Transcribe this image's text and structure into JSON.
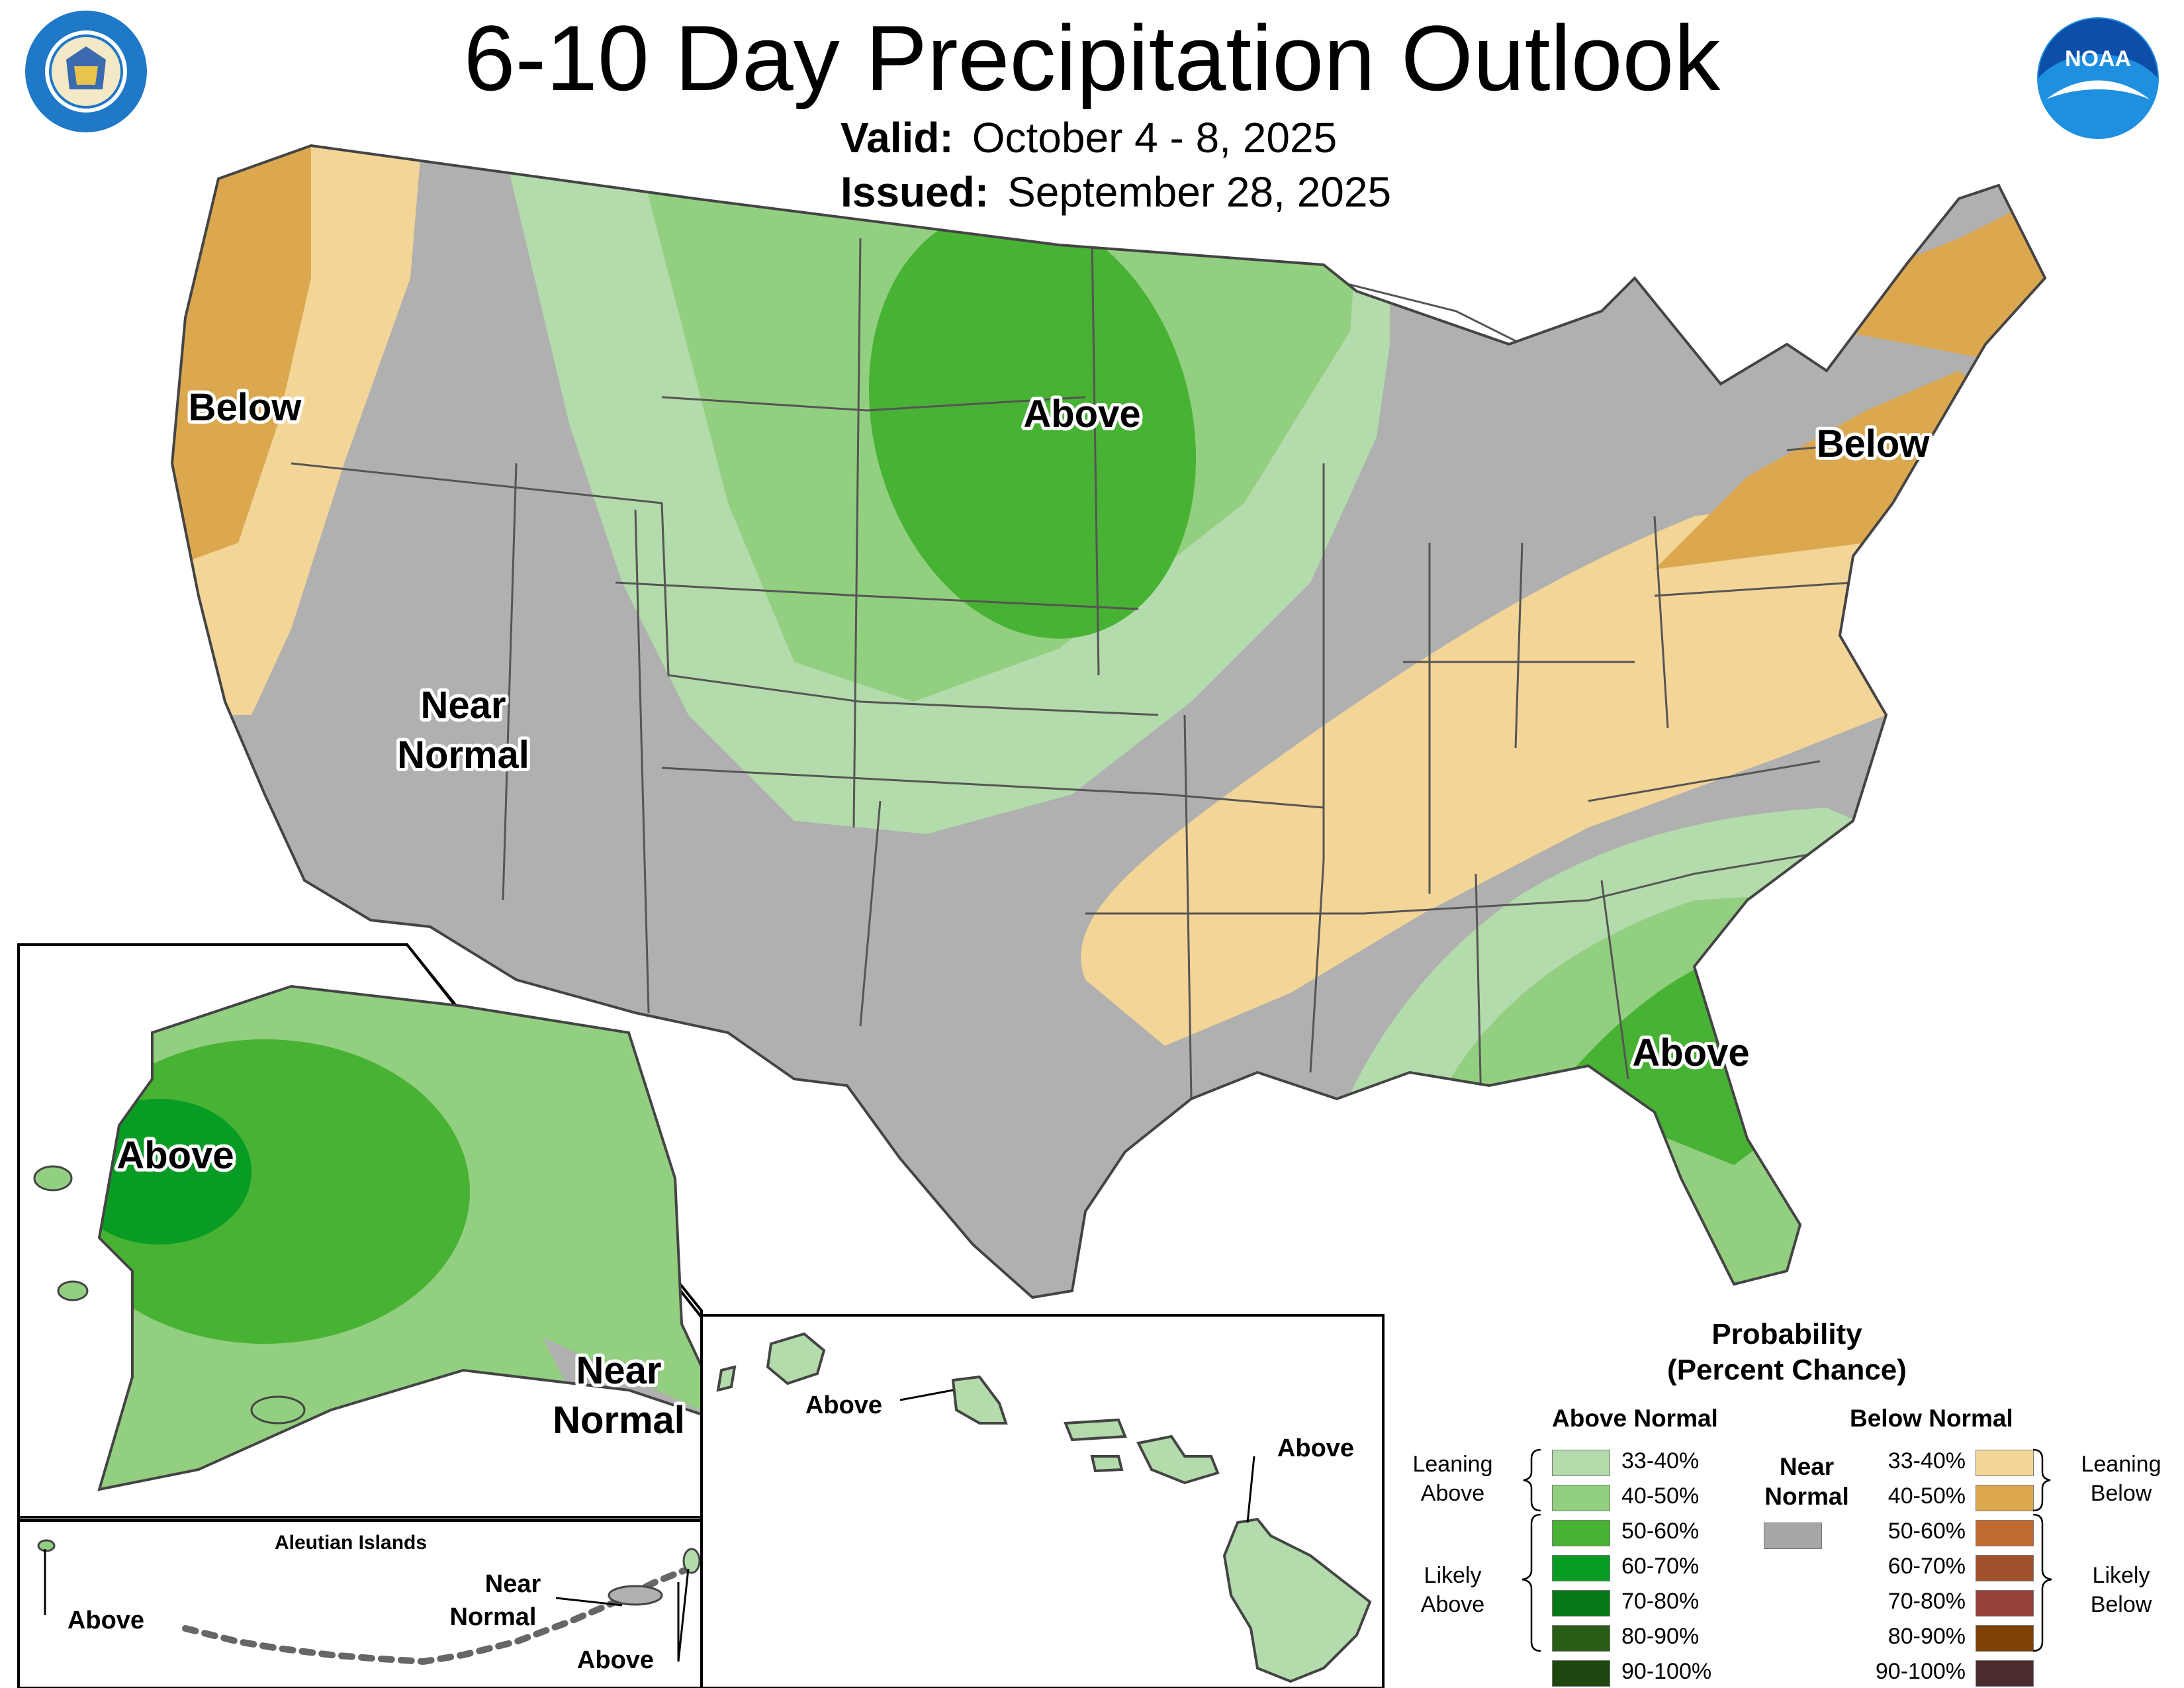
{
  "title": "6-10 Day Precipitation Outlook",
  "valid_label": "Valid:",
  "valid_dates": "October 4 - 8, 2025",
  "issued_label": "Issued:",
  "issued_date": "September 28, 2025",
  "map_labels": {
    "northwest": "Below",
    "plains": "Above",
    "west_line1": "Near",
    "west_line2": "Normal",
    "northeast": "Below",
    "southeast": "Above",
    "alaska_main": "Above",
    "alaska_panhandle_line1": "Near",
    "alaska_panhandle_line2": "Normal",
    "aleutian_title": "Aleutian Islands",
    "aleutian_west": "Above",
    "aleutian_near_line1": "Near",
    "aleutian_near_line2": "Normal",
    "aleutian_east": "Above",
    "hawaii_west": "Above",
    "hawaii_east": "Above"
  },
  "legend": {
    "title_line1": "Probability",
    "title_line2": "(Percent Chance)",
    "above_header": "Above Normal",
    "below_header": "Below Normal",
    "near_line1": "Near",
    "near_line2": "Normal",
    "near_color": "#a6a6a6",
    "leaning_above_1": "Leaning",
    "leaning_above_2": "Above",
    "likely_above_1": "Likely",
    "likely_above_2": "Above",
    "leaning_below_1": "Leaning",
    "leaning_below_2": "Below",
    "likely_below_1": "Likely",
    "likely_below_2": "Below",
    "above": [
      {
        "range": "33-40%",
        "color": "#b3dbab"
      },
      {
        "range": "40-50%",
        "color": "#93cf80"
      },
      {
        "range": "50-60%",
        "color": "#48b234"
      },
      {
        "range": "60-70%",
        "color": "#089c24"
      },
      {
        "range": "70-80%",
        "color": "#067817"
      },
      {
        "range": "80-90%",
        "color": "#295c17"
      },
      {
        "range": "90-100%",
        "color": "#1e4710"
      }
    ],
    "below": [
      {
        "range": "33-40%",
        "color": "#f2d597"
      },
      {
        "range": "40-50%",
        "color": "#dba84f"
      },
      {
        "range": "50-60%",
        "color": "#bf6a30"
      },
      {
        "range": "60-70%",
        "color": "#a0522d"
      },
      {
        "range": "70-80%",
        "color": "#954038"
      },
      {
        "range": "80-90%",
        "color": "#7d4005"
      },
      {
        "range": "90-100%",
        "color": "#4d2c30"
      }
    ]
  },
  "colors": {
    "near_normal": "#b0b0b0",
    "above_33": "#b3dbab",
    "above_40": "#93cf80",
    "above_50": "#48b234",
    "above_60": "#089c24",
    "below_33": "#f2d597",
    "below_40": "#dba84f"
  },
  "icons": [
    "department-of-commerce-seal-icon",
    "noaa-logo-icon"
  ]
}
